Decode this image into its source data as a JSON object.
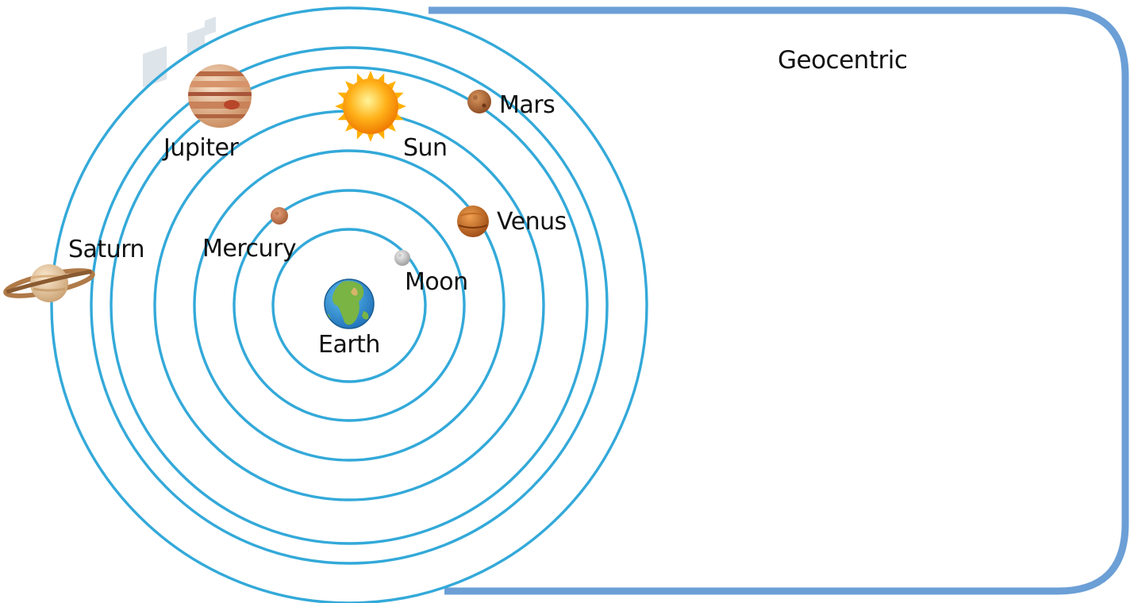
{
  "diagram": {
    "title": "Geocentric",
    "center_body": {
      "name": "Earth",
      "icon": "earth-icon"
    },
    "bodies": [
      {
        "key": "moon",
        "name": "Moon",
        "icon": "moon-icon"
      },
      {
        "key": "mercury",
        "name": "Mercury",
        "icon": "mercury-icon"
      },
      {
        "key": "venus",
        "name": "Venus",
        "icon": "venus-icon"
      },
      {
        "key": "sun",
        "name": "Sun",
        "icon": "sun-icon"
      },
      {
        "key": "mars",
        "name": "Mars",
        "icon": "mars-icon"
      },
      {
        "key": "jupiter",
        "name": "Jupiter",
        "icon": "jupiter-icon"
      },
      {
        "key": "saturn",
        "name": "Saturn",
        "icon": "saturn-icon"
      }
    ],
    "colors": {
      "orbit": "#33a9d9",
      "frame": "#6b9fd6",
      "text": "#111111"
    }
  }
}
